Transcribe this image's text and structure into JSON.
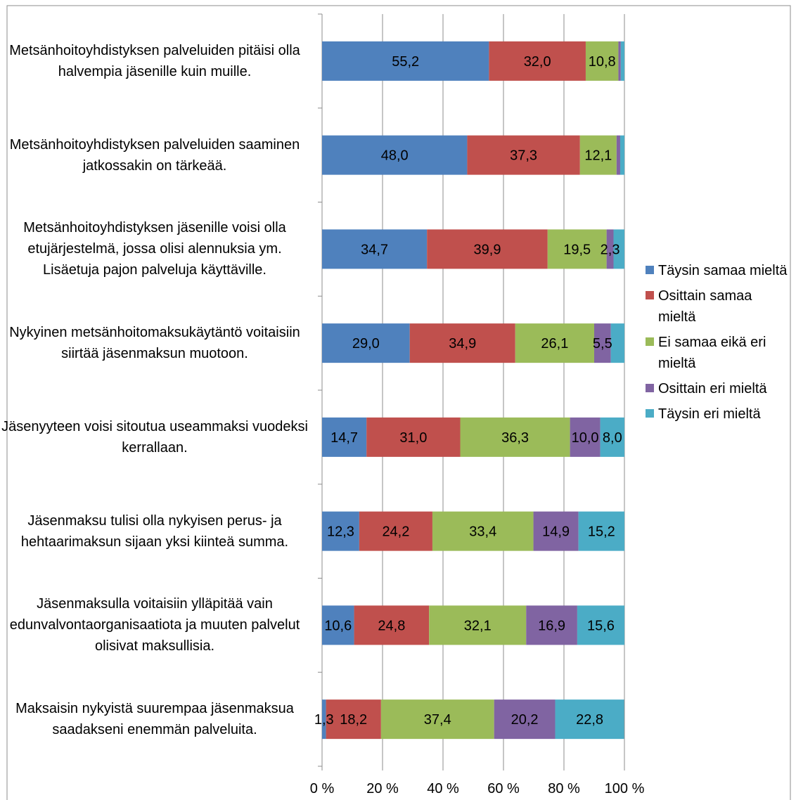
{
  "chart_data": {
    "type": "bar",
    "orientation": "horizontal",
    "stacked": "100%",
    "categories": [
      "Metsänhoitoyhdistyksen palveluiden pitäisi olla halvempia jäsenille kuin muille.",
      "Metsänhoitoyhdistyksen palveluiden saaminen jatkossakin on tärkeää.",
      "Metsänhoitoyhdistyksen jäsenille voisi olla etujärjestelmä, jossa olisi alennuksia ym. Lisäetuja pajon palveluja käyttäville.",
      "Nykyinen metsänhoitomaksukäytäntö voitaisiin siirtää jäsenmaksun muotoon.",
      "Jäsenyyteen voisi sitoutua useammaksi vuodeksi kerrallaan.",
      "Jäsenmaksu tulisi olla nykyisen perus- ja hehtaarimaksun sijaan yksi kiinteä summa.",
      "Jäsenmaksulla voitaisiin ylläpitää vain edunvalvontaorganisaatiota ja muuten palvelut olisivat maksullisia.",
      "Maksaisin nykyistä suurempaa jäsenmaksua saadakseni enemmän palveluita."
    ],
    "series": [
      {
        "name": "Täysin samaa mieltä",
        "color": "#4F81BD",
        "values": [
          55.2,
          48.0,
          34.7,
          29.0,
          14.7,
          12.3,
          10.6,
          1.3
        ],
        "labels": [
          "55,2",
          "48,0",
          "34,7",
          "29,0",
          "14,7",
          "12,3",
          "10,6",
          "1,3"
        ]
      },
      {
        "name": "Osittain samaa mieltä",
        "color": "#C0504D",
        "values": [
          32.0,
          37.3,
          39.9,
          34.9,
          31.0,
          24.2,
          24.8,
          18.2
        ],
        "labels": [
          "32,0",
          "37,3",
          "39,9",
          "34,9",
          "31,0",
          "24,2",
          "24,8",
          "18,2"
        ]
      },
      {
        "name": "Ei samaa eikä eri mieltä",
        "color": "#9BBB59",
        "values": [
          10.8,
          12.1,
          19.5,
          26.1,
          36.3,
          33.4,
          32.1,
          37.4
        ],
        "labels": [
          "10,8",
          "12,1",
          "19,5",
          "26,1",
          "36,3",
          "33,4",
          "32,1",
          "37,4"
        ]
      },
      {
        "name": "Osittain eri mieltä",
        "color": "#8064A2",
        "values": [
          0.8,
          1.2,
          2.3,
          5.5,
          10.0,
          14.9,
          16.9,
          20.2
        ],
        "labels": [
          "",
          "",
          "2,3",
          "5,5",
          "10,0",
          "14,9",
          "16,9",
          "20,2"
        ]
      },
      {
        "name": "Täysin eri mieltä",
        "color": "#4BACC6",
        "values": [
          1.2,
          1.4,
          3.6,
          4.5,
          8.0,
          15.2,
          15.6,
          22.8
        ],
        "labels": [
          "",
          "",
          "",
          "",
          "8,0",
          "15,2",
          "15,6",
          "22,8"
        ]
      }
    ],
    "xticks": [
      "0 %",
      "20 %",
      "40 %",
      "60 %",
      "80 %",
      "100 %"
    ],
    "xlim": [
      0,
      100
    ],
    "grid": true,
    "legend_position": "right"
  }
}
